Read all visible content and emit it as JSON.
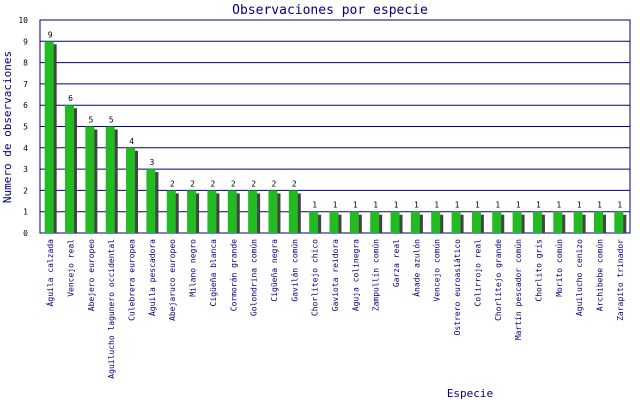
{
  "chart_data": {
    "type": "bar",
    "title": "Observaciones por especie",
    "xlabel": "Especie",
    "ylabel": "Numero de observaciones",
    "ylim": [
      0,
      10
    ],
    "yticks": [
      0,
      1,
      2,
      3,
      4,
      5,
      6,
      7,
      8,
      9,
      10
    ],
    "grid": true,
    "bar_color": "#22bb22",
    "shadow_color": "#444444",
    "frame_color": "#000080",
    "categories": [
      "Águila calzada",
      "Vencejo real",
      "Abejero europeo",
      "Aguilucho lagunero occidental",
      "Culebrera europea",
      "Águila pescadora",
      "Abejaruco europeo",
      "Milano negro",
      "Cigüeña blanca",
      "Cormorán grande",
      "Golondrina común",
      "Cigüeña negra",
      "Gavilán común",
      "Chorlitejo chico",
      "Gaviota reidora",
      "Aguja colinegra",
      "Zampullín común",
      "Garza real",
      "Ánade azulón",
      "Vencejo común",
      "Ostrero euroasiático",
      "Colirrojo real",
      "Chorlitejo grande",
      "Martín pescador común",
      "Chorlito gris",
      "Morito común",
      "Aguilucho cenizo",
      "Archibebe común",
      "Zarapito trinador"
    ],
    "values": [
      9,
      6,
      5,
      5,
      4,
      3,
      2,
      2,
      2,
      2,
      2,
      2,
      2,
      1,
      1,
      1,
      1,
      1,
      1,
      1,
      1,
      1,
      1,
      1,
      1,
      1,
      1,
      1,
      1
    ]
  }
}
